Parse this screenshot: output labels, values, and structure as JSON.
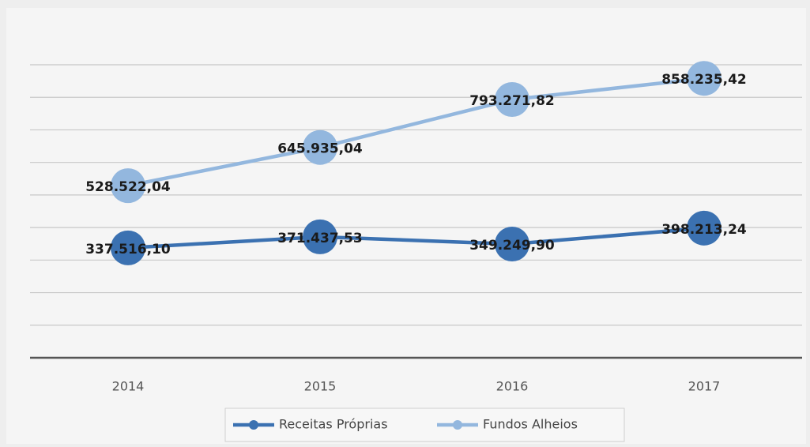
{
  "chart_data": {
    "type": "line",
    "categories": [
      "2014",
      "2015",
      "2016",
      "2017"
    ],
    "series": [
      {
        "name": "Receitas Próprias",
        "color": "#3b71b1",
        "values": [
          337516.1,
          371437.53,
          349249.9,
          398213.24
        ],
        "value_labels": [
          "337.516,10",
          "371.437,53",
          "349.249,90",
          "398.213,24"
        ]
      },
      {
        "name": "Fundos Alheios",
        "color": "#93b7de",
        "values": [
          528522.04,
          645935.04,
          793271.82,
          858235.42
        ],
        "value_labels": [
          "528.522,04",
          "645.935,04",
          "793.271,82",
          "858.235,42"
        ]
      }
    ],
    "ylim": [
      0,
      900000
    ],
    "yticks": [
      0,
      100000,
      200000,
      300000,
      400000,
      500000,
      600000,
      700000,
      800000,
      900000
    ],
    "grid": true,
    "legend": "bottom"
  }
}
